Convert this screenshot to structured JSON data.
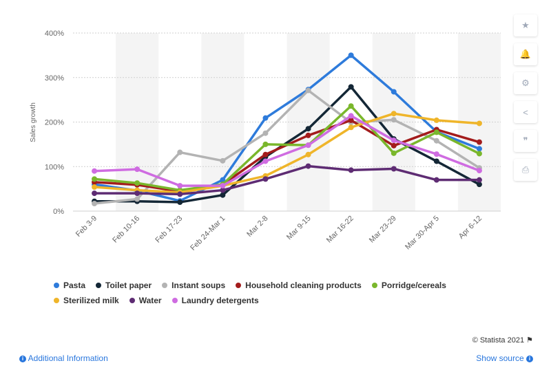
{
  "chart_data": {
    "type": "line",
    "categories": [
      "Feb 3-9",
      "Feb 10-16",
      "Feb 17-23",
      "Feb 24-Mar 1",
      "Mar 2-8",
      "Mar 9-15",
      "Mar 16-22",
      "Mar 23-29",
      "Mar 30-Apr 5",
      "Apr 6-12"
    ],
    "ylabel": "Sales growth",
    "ylim": [
      0,
      400
    ],
    "yticks": [
      "0%",
      "100%",
      "200%",
      "300%",
      "400%"
    ],
    "grid": true,
    "legend_position": "bottom",
    "series": [
      {
        "name": "Pasta",
        "color": "#2e7bdb",
        "values": [
          60,
          46,
          23,
          70,
          209,
          273,
          350,
          268,
          178,
          140
        ]
      },
      {
        "name": "Toilet paper",
        "color": "#142736",
        "values": [
          22,
          22,
          20,
          36,
          122,
          185,
          279,
          162,
          112,
          60
        ]
      },
      {
        "name": "Instant soups",
        "color": "#b3b3b3",
        "values": [
          17,
          27,
          132,
          113,
          175,
          271,
          199,
          205,
          158,
          97
        ]
      },
      {
        "name": "Household cleaning products",
        "color": "#a31c1c",
        "values": [
          65,
          59,
          44,
          60,
          127,
          170,
          204,
          147,
          183,
          155
        ]
      },
      {
        "name": "Porridge/cereals",
        "color": "#7ab72c",
        "values": [
          72,
          63,
          47,
          60,
          150,
          148,
          236,
          130,
          177,
          129
        ]
      },
      {
        "name": "Sterilized milk",
        "color": "#efb52a",
        "values": [
          54,
          47,
          42,
          57,
          79,
          127,
          188,
          219,
          204,
          197
        ]
      },
      {
        "name": "Water",
        "color": "#5e2c73",
        "values": [
          40,
          40,
          38,
          47,
          72,
          101,
          92,
          95,
          70,
          70
        ]
      },
      {
        "name": "Laundry detergents",
        "color": "#cf6ce1",
        "values": [
          90,
          94,
          57,
          57,
          112,
          148,
          214,
          159,
          128,
          91
        ]
      }
    ]
  },
  "legend": {
    "rows": [
      [
        {
          "label": "Pasta",
          "color": "#2e7bdb"
        },
        {
          "label": "Toilet paper",
          "color": "#142736"
        },
        {
          "label": "Instant soups",
          "color": "#b3b3b3"
        },
        {
          "label": "Household cleaning products",
          "color": "#a31c1c"
        },
        {
          "label": "Porridge/cereals",
          "color": "#7ab72c"
        }
      ],
      [
        {
          "label": "Sterilized milk",
          "color": "#efb52a"
        },
        {
          "label": "Water",
          "color": "#5e2c73"
        },
        {
          "label": "Laundry detergents",
          "color": "#cf6ce1"
        }
      ]
    ]
  },
  "toolbar": {
    "buttons": [
      {
        "name": "star-icon",
        "glyph": "★"
      },
      {
        "name": "bell-icon",
        "glyph": "🔔"
      },
      {
        "name": "gear-icon",
        "glyph": "⚙"
      },
      {
        "name": "share-icon",
        "glyph": "<"
      },
      {
        "name": "quote-icon",
        "glyph": "❞"
      },
      {
        "name": "print-icon",
        "glyph": "⎙"
      }
    ]
  },
  "footer": {
    "credit": "© Statista 2021",
    "additional_info": "Additional Information",
    "show_source": "Show source"
  }
}
